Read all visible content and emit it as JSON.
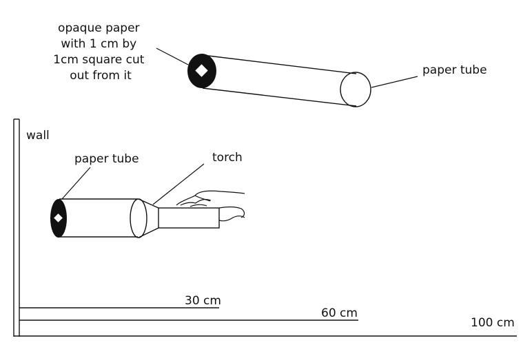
{
  "top_figure": {
    "label_opaque_paper": [
      "opaque paper",
      "with 1 cm by",
      "1cm square cut",
      "out from it"
    ],
    "label_paper_tube": "paper tube"
  },
  "bottom_figure": {
    "label_wall": "wall",
    "label_paper_tube": "paper tube",
    "label_torch": "torch",
    "distance_30": "30 cm",
    "distance_60": "60 cm",
    "distance_100": "100 cm"
  }
}
